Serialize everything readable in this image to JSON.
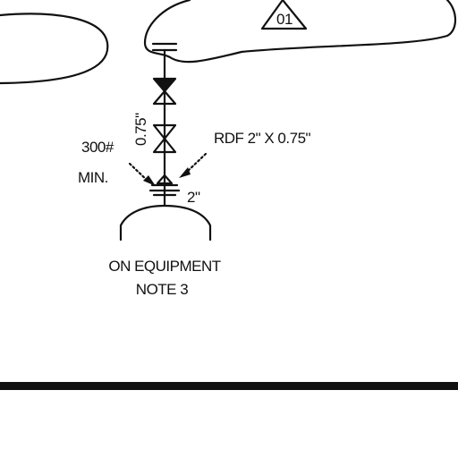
{
  "diagram": {
    "marker_label": "01",
    "annotations": {
      "dimension": "0.75\"",
      "rating": "300#",
      "rating_min": "MIN.",
      "fitting": "RDF 2\" X 0.75\"",
      "nozzle_size": "2\""
    },
    "equipment": {
      "line1": "ON EQUIPMENT",
      "line2": "NOTE 3"
    }
  },
  "colors": {
    "ink": "#111111",
    "background": "#ffffff"
  }
}
